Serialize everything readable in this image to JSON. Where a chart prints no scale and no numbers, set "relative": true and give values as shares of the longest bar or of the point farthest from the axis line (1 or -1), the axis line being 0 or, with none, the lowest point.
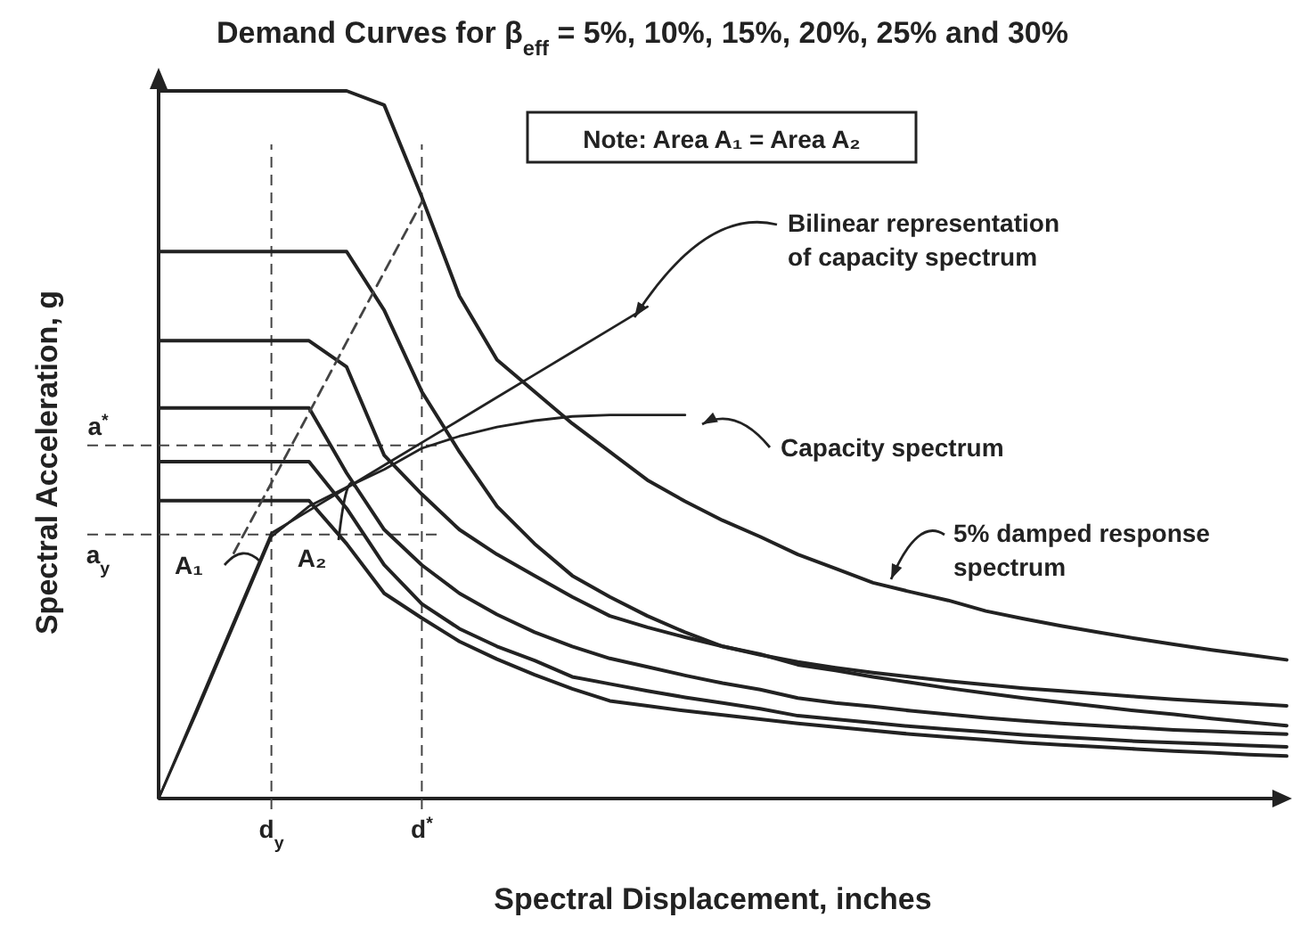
{
  "chart_data": {
    "type": "line",
    "title": "Demand Curves for β$_{eff}$ = 5%, 10%, 15%, 20%, 25% and  30%",
    "xlabel": "Spectral Displacement, inches",
    "ylabel": "Spectral Acceleration, g",
    "relative": true,
    "categories": [
      null,
      null,
      null,
      "d$_{y}$",
      null,
      null,
      null,
      "d$^{*}$",
      null,
      null,
      null,
      null,
      null,
      null,
      null,
      null,
      null,
      null,
      null,
      null,
      null,
      null,
      null,
      null,
      null,
      null,
      null,
      null,
      null,
      null,
      null
    ],
    "series": [
      {
        "color": "#222222",
        "values": [
          1,
          1,
          1,
          1,
          1,
          1,
          0.98,
          0.85,
          0.71,
          0.62,
          0.575,
          0.53,
          0.49,
          0.45,
          0.42,
          0.393,
          0.37,
          0.345,
          0.325,
          0.305,
          0.292,
          0.28,
          0.265,
          0.254,
          0.244,
          0.235,
          0.226,
          0.218,
          0.21,
          0.203,
          0.196
        ]
      },
      {
        "color": "#222222",
        "values": [
          0.773,
          0.773,
          0.773,
          0.773,
          0.773,
          0.773,
          0.69,
          0.575,
          0.49,
          0.413,
          0.36,
          0.315,
          0.285,
          0.258,
          0.235,
          0.215,
          0.203,
          0.193,
          0.185,
          0.178,
          0.172,
          0.166,
          0.161,
          0.156,
          0.152,
          0.148,
          0.144,
          0.14,
          0.137,
          0.134,
          0.131
        ]
      },
      {
        "color": "#222222",
        "values": [
          0.647,
          0.647,
          0.647,
          0.647,
          0.647,
          0.61,
          0.485,
          0.43,
          0.38,
          0.345,
          0.315,
          0.285,
          0.258,
          0.242,
          0.228,
          0.215,
          0.204,
          0.189,
          0.181,
          0.172,
          0.164,
          0.156,
          0.149,
          0.142,
          0.136,
          0.13,
          0.124,
          0.119,
          0.113,
          0.108,
          0.103
        ]
      },
      {
        "color": "#222222",
        "values": [
          0.552,
          0.552,
          0.552,
          0.552,
          0.552,
          0.46,
          0.38,
          0.33,
          0.29,
          0.26,
          0.235,
          0.215,
          0.198,
          0.186,
          0.174,
          0.163,
          0.154,
          0.142,
          0.135,
          0.13,
          0.124,
          0.119,
          0.114,
          0.11,
          0.106,
          0.103,
          0.1,
          0.097,
          0.095,
          0.093,
          0.091
        ]
      },
      {
        "color": "#222222",
        "values": [
          0.476,
          0.476,
          0.476,
          0.476,
          0.476,
          0.41,
          0.33,
          0.275,
          0.24,
          0.215,
          0.195,
          0.172,
          0.162,
          0.152,
          0.143,
          0.135,
          0.127,
          0.117,
          0.112,
          0.107,
          0.102,
          0.098,
          0.094,
          0.09,
          0.087,
          0.084,
          0.081,
          0.079,
          0.077,
          0.075,
          0.073
        ]
      },
      {
        "color": "#222222",
        "values": [
          0.421,
          0.421,
          0.421,
          0.421,
          0.421,
          0.36,
          0.29,
          0.255,
          0.222,
          0.197,
          0.175,
          0.155,
          0.138,
          0.131,
          0.124,
          0.118,
          0.112,
          0.106,
          0.101,
          0.096,
          0.091,
          0.087,
          0.083,
          0.079,
          0.076,
          0.073,
          0.07,
          0.067,
          0.065,
          0.062,
          0.06
        ]
      },
      {
        "color": "#222222",
        "values": [
          0,
          0.12,
          0.245,
          0.37,
          0.413,
          0.44,
          0.465,
          0.495,
          0.512,
          0.525,
          0.534,
          0.54,
          0.542,
          0.542,
          0.542,
          null,
          null,
          null,
          null,
          null,
          null,
          null,
          null,
          null,
          null,
          null,
          null,
          null,
          null,
          null,
          null
        ]
      },
      {
        "color": "#222222",
        "values": [
          0,
          0.125,
          0.25,
          0.375,
          0.407,
          0.439,
          0.471,
          0.503,
          0.535,
          0.567,
          0.599,
          0.631,
          0.663,
          0.695,
          null,
          null,
          null,
          null,
          null,
          null,
          null,
          null,
          null,
          null,
          null,
          null,
          null,
          null,
          null,
          null,
          null
        ]
      },
      {
        "color": "#444444",
        "line_style": "dashed",
        "values": [
          null,
          null,
          0.347,
          0.446,
          0.545,
          0.645,
          0.744,
          0.843,
          null,
          null,
          null,
          null,
          null,
          null,
          null,
          null,
          null,
          null,
          null,
          null,
          null,
          null,
          null,
          null,
          null,
          null,
          null,
          null,
          null,
          null,
          null
        ]
      }
    ],
    "ref_lines": [
      {
        "axis": "y",
        "value": 0.499,
        "label": "a$^{*}$",
        "line_style": "dashed"
      },
      {
        "axis": "y",
        "value": 0.373,
        "label": "a$_{y}$",
        "line_style": "dashed"
      },
      {
        "axis": "x",
        "value": "d$_{y}$",
        "line_style": "dashed"
      },
      {
        "axis": "x",
        "value": "d$^{*}$",
        "line_style": "dashed"
      }
    ],
    "annotations": [
      "Note:  Area A₁ = Area A₂",
      "Bilinear representation of capacity spectrum",
      "Capacity spectrum",
      "5% damped response spectrum",
      "A₁",
      "A₂"
    ]
  }
}
